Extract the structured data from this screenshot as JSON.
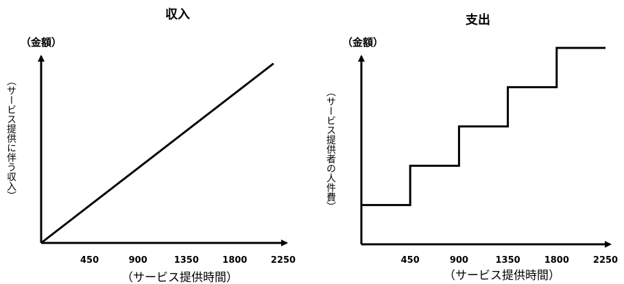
{
  "chart_data": [
    {
      "type": "line",
      "title": "収入",
      "unit_label": "（金額）",
      "ylabel": "（サービス提供に伴う収入）",
      "xlabel": "（サービス提供時間）",
      "xticks": [
        "450",
        "900",
        "1350",
        "1800",
        "2250"
      ],
      "xlim": [
        0,
        2250
      ],
      "ylim": [
        0,
        1
      ],
      "grid": false,
      "series": [
        {
          "x": [
            0,
            2160
          ],
          "y": [
            0,
            0.92
          ]
        }
      ]
    },
    {
      "type": "line",
      "title": "支出",
      "unit_label": "（金額）",
      "ylabel": "（サービス提供者の人件費）",
      "xlabel": "（サービス提供時間）",
      "xticks": [
        "450",
        "900",
        "1350",
        "1800",
        "2250"
      ],
      "xlim": [
        0,
        2250
      ],
      "ylim": [
        0,
        1
      ],
      "grid": false,
      "step": true,
      "series": [
        {
          "x": [
            0,
            450,
            450,
            900,
            900,
            1350,
            1350,
            1800,
            1800,
            2250
          ],
          "y": [
            0.2,
            0.2,
            0.4,
            0.4,
            0.6,
            0.6,
            0.8,
            0.8,
            1.0,
            1.0
          ]
        }
      ]
    }
  ]
}
